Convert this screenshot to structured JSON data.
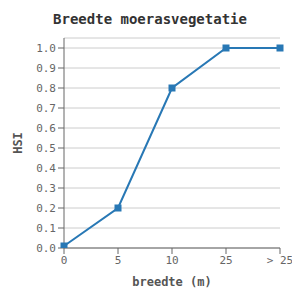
{
  "chart_data": {
    "type": "line",
    "title": "Breedte moerasvegetatie",
    "xlabel": "breedte (m)",
    "ylabel": "HSI",
    "categories": [
      "0",
      "5",
      "10",
      "25",
      "> 25"
    ],
    "values": [
      0.01,
      0.2,
      0.8,
      1.0,
      1.0
    ],
    "color": "#2878b5",
    "marker": "square",
    "ylim": [
      0.0,
      1.05
    ],
    "yticks": [
      {
        "value": 0.0,
        "label": "0.0"
      },
      0.1,
      0.2,
      0.3,
      0.4,
      0.5,
      0.6,
      0.7,
      0.8,
      0.9,
      {
        "value": 1.0,
        "label": "1.0"
      }
    ],
    "grid": true
  }
}
